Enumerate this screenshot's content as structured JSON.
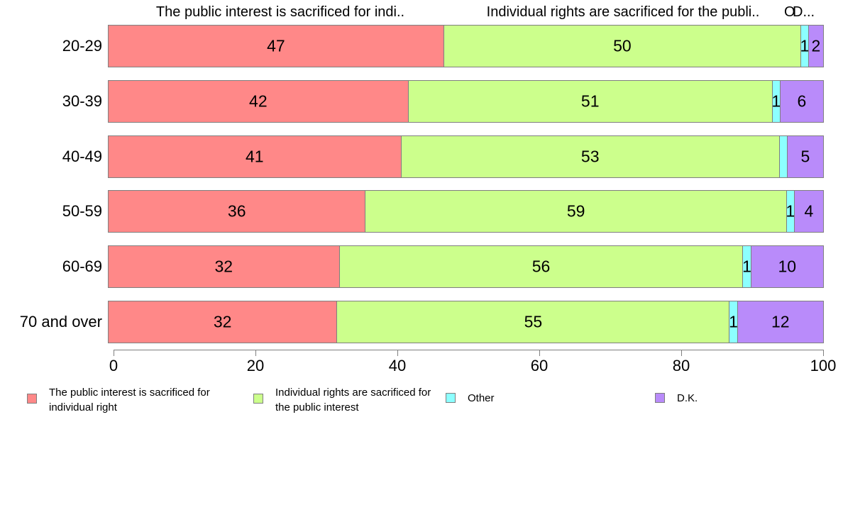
{
  "chart_data": {
    "type": "bar",
    "orientation": "horizontal",
    "stacked": true,
    "categories": [
      "20-29",
      "30-39",
      "40-49",
      "50-59",
      "60-69",
      "70 and over"
    ],
    "series": [
      {
        "name": "The public interest is sacrificed for individual right",
        "color": "#FF8888",
        "values": [
          47,
          42,
          41,
          36,
          32,
          32
        ]
      },
      {
        "name": "Individual rights are sacrificed for the public interest",
        "color": "#CCFF8C",
        "values": [
          50,
          51,
          53,
          59,
          56,
          55
        ]
      },
      {
        "name": "Other",
        "color": "#8CFFFF",
        "values": [
          1,
          1,
          1,
          1,
          1,
          1
        ]
      },
      {
        "name": "D.K.",
        "color": "#B98BFA",
        "values": [
          2,
          6,
          5,
          4,
          10,
          12
        ]
      }
    ],
    "bar_labels": [
      [
        "47",
        "50",
        "1",
        "2"
      ],
      [
        "42",
        "51",
        "1",
        "6"
      ],
      [
        "41",
        "53",
        "",
        "5"
      ],
      [
        "36",
        "59",
        "1",
        "4"
      ],
      [
        "32",
        "56",
        "1",
        "10"
      ],
      [
        "32",
        "55",
        "1",
        "12"
      ]
    ],
    "column_headers": [
      "The public interest is sacrificed for indi..",
      "Individual rights are sacrificed for the publi..",
      "O",
      "D..."
    ],
    "x_axis": {
      "min": 0,
      "max": 100,
      "ticks": [
        "0",
        "20",
        "40",
        "60",
        "80",
        "100"
      ]
    },
    "legend": [
      {
        "label": "The public interest is sacrificed for individual right",
        "color": "#FF8888"
      },
      {
        "label": "Individual rights are sacrificed for the public interest",
        "color": "#CCFF8C"
      },
      {
        "label": "Other",
        "color": "#8CFFFF"
      },
      {
        "label": "D.K.",
        "color": "#B98BFA"
      }
    ],
    "segment_border_color": "#7F7F7F",
    "axis_color": "#808080",
    "grid": false,
    "legend_position": "bottom"
  }
}
